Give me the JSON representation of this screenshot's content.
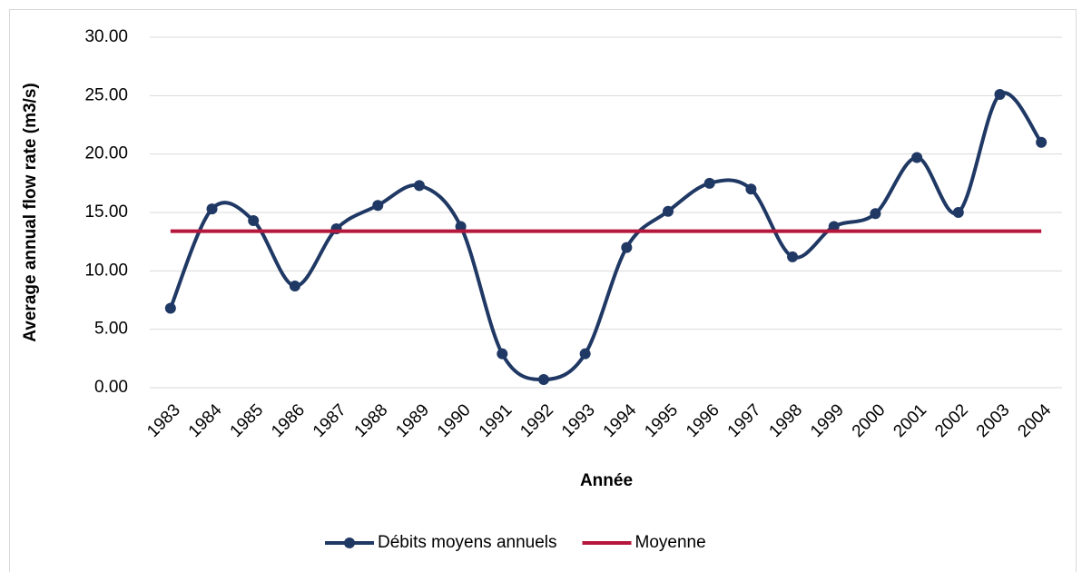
{
  "chart_data": {
    "type": "line",
    "xlabel": "Année",
    "ylabel": "Average annual flow rate (m3/s)",
    "categories": [
      "1983",
      "1984",
      "1985",
      "1986",
      "1987",
      "1988",
      "1989",
      "1990",
      "1991",
      "1992",
      "1993",
      "1994",
      "1995",
      "1996",
      "1997",
      "1998",
      "1999",
      "2000",
      "2001",
      "2002",
      "2003",
      "2004"
    ],
    "series": [
      {
        "name": "Débits moyens annuels",
        "color": "#1f3864",
        "markers": true,
        "smooth": true,
        "values": [
          6.8,
          15.3,
          14.3,
          8.7,
          13.6,
          15.6,
          17.3,
          13.8,
          2.9,
          0.7,
          2.9,
          12.0,
          15.1,
          17.5,
          17.0,
          11.2,
          13.8,
          14.9,
          19.7,
          15.0,
          25.1,
          21.0
        ]
      },
      {
        "name": "Moyenne",
        "color": "#b5163b",
        "markers": false,
        "smooth": false,
        "values": [
          13.4,
          13.4,
          13.4,
          13.4,
          13.4,
          13.4,
          13.4,
          13.4,
          13.4,
          13.4,
          13.4,
          13.4,
          13.4,
          13.4,
          13.4,
          13.4,
          13.4,
          13.4,
          13.4,
          13.4,
          13.4,
          13.4
        ]
      }
    ],
    "ylim": [
      0,
      30
    ],
    "yticks": [
      {
        "value": 0,
        "label": "0.00"
      },
      {
        "value": 5,
        "label": "5.00"
      },
      {
        "value": 10,
        "label": "10.00"
      },
      {
        "value": 15,
        "label": "15.00"
      },
      {
        "value": 20,
        "label": "20.00"
      },
      {
        "value": 25,
        "label": "25.00"
      },
      {
        "value": 30,
        "label": "30.00"
      }
    ],
    "grid": true,
    "legend": "bottom"
  }
}
